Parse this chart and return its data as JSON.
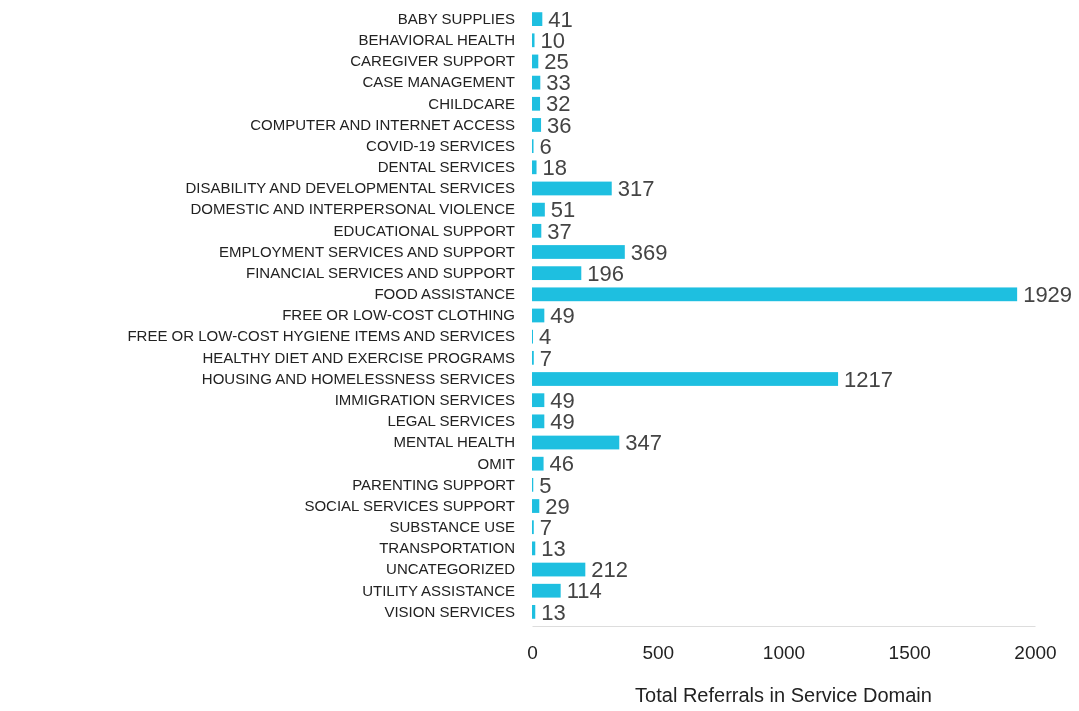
{
  "chart_data": {
    "type": "bar",
    "orientation": "horizontal",
    "xlabel": "Total Referrals in Service Domain",
    "categories": [
      "BABY SUPPLIES",
      "BEHAVIORAL HEALTH",
      "CAREGIVER SUPPORT",
      "CASE MANAGEMENT",
      "CHILDCARE",
      "COMPUTER AND INTERNET ACCESS",
      "COVID-19 SERVICES",
      "DENTAL SERVICES",
      "DISABILITY AND DEVELOPMENTAL SERVICES",
      "DOMESTIC AND INTERPERSONAL VIOLENCE",
      "EDUCATIONAL SUPPORT",
      "EMPLOYMENT SERVICES AND SUPPORT",
      "FINANCIAL SERVICES AND SUPPORT",
      "FOOD ASSISTANCE",
      "FREE OR LOW-COST CLOTHING",
      "FREE OR LOW-COST HYGIENE ITEMS AND SERVICES",
      "HEALTHY DIET AND EXERCISE PROGRAMS",
      "HOUSING AND HOMELESSNESS SERVICES",
      "IMMIGRATION SERVICES",
      "LEGAL SERVICES",
      "MENTAL HEALTH",
      "OMIT",
      "PARENTING SUPPORT",
      "SOCIAL SERVICES SUPPORT",
      "SUBSTANCE USE",
      "TRANSPORTATION",
      "UNCATEGORIZED",
      "UTILITY ASSISTANCE",
      "VISION SERVICES"
    ],
    "values": [
      41,
      10,
      25,
      33,
      32,
      36,
      6,
      18,
      317,
      51,
      37,
      369,
      196,
      1929,
      49,
      4,
      7,
      1217,
      49,
      49,
      347,
      46,
      5,
      29,
      7,
      13,
      212,
      114,
      13
    ],
    "color": "#1ebfe0",
    "xlim": [
      0,
      2000
    ],
    "xticks": [
      0,
      500,
      1000,
      1500,
      2000
    ],
    "data_labels": true,
    "grid": false
  }
}
